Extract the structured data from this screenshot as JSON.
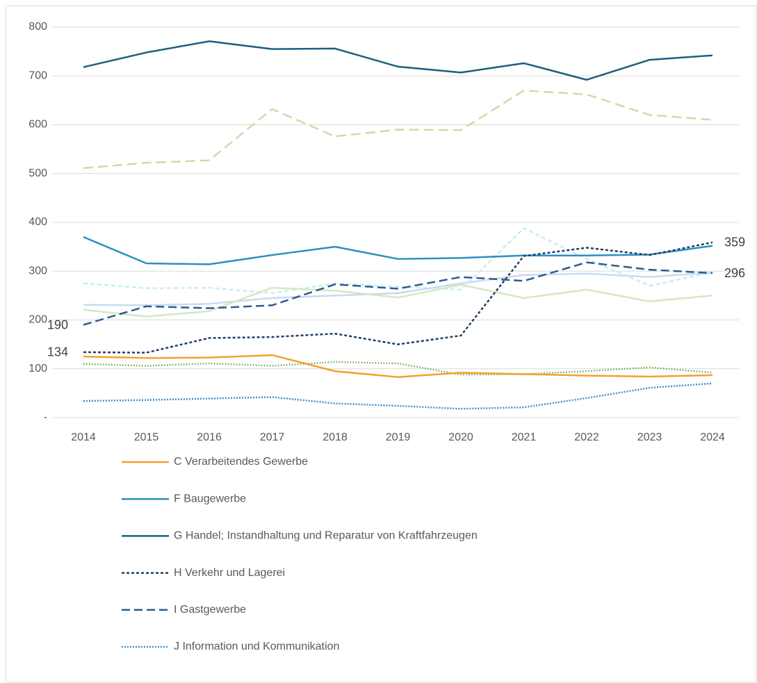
{
  "chart_data": {
    "type": "line",
    "x": [
      2014,
      2015,
      2016,
      2017,
      2018,
      2019,
      2020,
      2021,
      2022,
      2023,
      2024
    ],
    "ylim": [
      0,
      800
    ],
    "yticks": [
      {
        "value": 0,
        "label": "-"
      },
      100,
      200,
      300,
      400,
      500,
      600,
      700,
      800
    ],
    "grid": true,
    "legend": "bottom",
    "series": [
      {
        "color": "#c4e0a8",
        "dash": "14,7",
        "width": 2.5,
        "values": [
          511,
          522,
          527,
          632,
          576,
          590,
          589,
          670,
          662,
          620,
          610
        ]
      },
      {
        "color": "#c2eef5",
        "dash": "6,4",
        "width": 2.5,
        "values": [
          275,
          265,
          266,
          255,
          275,
          268,
          262,
          388,
          325,
          270,
          298
        ]
      },
      {
        "color": "#c9d9f3",
        "width": 2.5,
        "values": [
          231,
          230,
          233,
          245,
          250,
          255,
          275,
          292,
          295,
          288,
          297
        ]
      },
      {
        "color": "#d4e8c0",
        "width": 2.5,
        "values": [
          221,
          207,
          218,
          266,
          260,
          246,
          272,
          245,
          262,
          238,
          250
        ]
      },
      {
        "color": "#6aa84f",
        "dash": "1.5,2.5",
        "width": 2.5,
        "values": [
          110,
          106,
          111,
          106,
          114,
          111,
          88,
          89,
          95,
          103,
          92
        ]
      },
      {
        "name": "C Verarbeitendes Gewerbe",
        "color": "#f5a02a",
        "width": 2.5,
        "values": [
          125,
          122,
          123,
          128,
          95,
          83,
          92,
          89,
          86,
          84,
          87
        ]
      },
      {
        "name": "F Baugewerbe",
        "color": "#2b8fc0",
        "width": 2.5,
        "values": [
          370,
          316,
          314,
          333,
          350,
          325,
          327,
          332,
          332,
          334,
          352
        ]
      },
      {
        "name": "G Handel; Instandhaltung und Reparatur von Kraftfahrzeugen",
        "color": "#1d5f7f",
        "width": 2.5,
        "values": [
          718,
          748,
          771,
          755,
          756,
          719,
          707,
          726,
          692,
          733,
          742
        ]
      },
      {
        "name": "H Verkehr und Lagerei",
        "color": "#1f3f66",
        "dash": "4,3",
        "width": 2.5,
        "data_labels": [
          0,
          10
        ],
        "values": [
          134,
          133,
          163,
          165,
          172,
          150,
          168,
          331,
          348,
          333,
          359
        ]
      },
      {
        "name": "I Gastgewerbe",
        "color": "#2a5d8f",
        "dash": "12,6",
        "width": 2.5,
        "data_labels": [
          0,
          10
        ],
        "values": [
          190,
          228,
          224,
          230,
          273,
          264,
          288,
          280,
          318,
          303,
          296
        ]
      },
      {
        "name": "J Information und Kommunikation",
        "color": "#3a8fd0",
        "dash": "2,2",
        "width": 2.5,
        "values": [
          34,
          36,
          39,
          42,
          29,
          24,
          18,
          21,
          40,
          61,
          70
        ]
      }
    ]
  }
}
